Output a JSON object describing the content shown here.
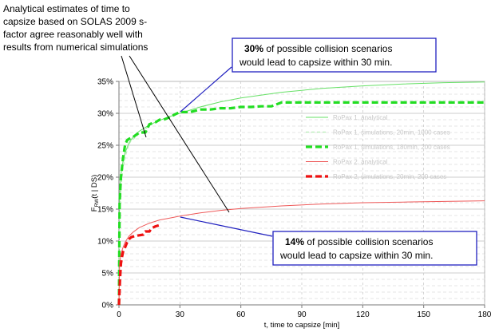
{
  "chart_data": {
    "type": "line",
    "title": "",
    "xlabel": "t, time to capsize [min]",
    "ylabel_main": "F",
    "ylabel_sub": "RW",
    "ylabel_rest": "(t | DS)",
    "xlim": [
      0,
      180
    ],
    "ylim": [
      0,
      35
    ],
    "x_ticks": [
      0,
      30,
      60,
      90,
      120,
      150,
      180
    ],
    "x_tick_labels": [
      "0",
      "30",
      "60",
      "90",
      "120",
      "150",
      "180"
    ],
    "y_ticks": [
      0,
      5,
      10,
      15,
      20,
      25,
      30,
      35
    ],
    "y_tick_labels": [
      "0%",
      "5%",
      "10%",
      "15%",
      "20%",
      "25%",
      "30%",
      "35%"
    ],
    "grid": true,
    "legend_position": "right",
    "series": [
      {
        "name": "RoPax 1, analytical",
        "color": "#66e066",
        "style": "solid",
        "x": [
          0,
          0.3,
          1,
          2,
          3,
          5,
          7,
          10,
          15,
          20,
          25,
          30,
          40,
          50,
          60,
          80,
          100,
          120,
          140,
          160,
          180
        ],
        "y": [
          0,
          17,
          20.5,
          22.5,
          23.8,
          25.4,
          26.3,
          27.2,
          28.2,
          28.9,
          29.5,
          30.0,
          31.0,
          31.8,
          32.4,
          33.3,
          33.9,
          34.3,
          34.6,
          34.8,
          34.9
        ]
      },
      {
        "name": "RoPax 1, simulations, 20min, 1000 cases",
        "color": "#b4ecb4",
        "style": "dashed-thin",
        "x": [
          0,
          0.3,
          1,
          1.5,
          2,
          3,
          4,
          5,
          6,
          8,
          10,
          12,
          14,
          16,
          18,
          20
        ],
        "y": [
          0,
          13,
          18,
          20,
          21.5,
          23,
          24.3,
          25.2,
          25.7,
          26.2,
          26.8,
          27.3,
          27.8,
          28.3,
          28.6,
          28.9
        ]
      },
      {
        "name": "RoPax 1, simulations, 180min, 200 cases",
        "color": "#22dd22",
        "style": "dashed-thick",
        "x": [
          0,
          0.3,
          1,
          2,
          3,
          4,
          5,
          7,
          10,
          13,
          15,
          18,
          20,
          22,
          25,
          28,
          30,
          35,
          40,
          45,
          50,
          55,
          60,
          65,
          70,
          75,
          80,
          90,
          100,
          120,
          140,
          160,
          180
        ],
        "y": [
          0,
          16,
          20,
          23,
          25,
          25.8,
          26,
          26.3,
          27,
          27,
          28.3,
          28.6,
          29,
          29,
          29.4,
          29.9,
          30.2,
          30.2,
          30.6,
          30.6,
          30.8,
          30.8,
          31.0,
          31.0,
          31.1,
          31.1,
          31.7,
          31.7,
          31.7,
          31.7,
          31.7,
          31.7,
          31.7
        ]
      },
      {
        "name": "RoPax 2, analytical",
        "color": "#ee5a5a",
        "style": "solid",
        "x": [
          0,
          0.3,
          1,
          2,
          3,
          5,
          7,
          10,
          15,
          20,
          25,
          30,
          40,
          50,
          60,
          80,
          100,
          120,
          140,
          160,
          180
        ],
        "y": [
          0,
          6.5,
          8.0,
          9.0,
          9.8,
          10.8,
          11.4,
          12.1,
          12.8,
          13.3,
          13.6,
          13.9,
          14.4,
          14.8,
          15.1,
          15.5,
          15.8,
          16.0,
          16.1,
          16.2,
          16.3
        ]
      },
      {
        "name": "RoPax 2, simulations, 20min, 200 cases",
        "color": "#ee1111",
        "style": "dashed-thick",
        "x": [
          0,
          0.5,
          1,
          1.5,
          2,
          3,
          4,
          5,
          6,
          8,
          10,
          12,
          13,
          15,
          16,
          18,
          20
        ],
        "y": [
          0,
          4,
          6.5,
          7.5,
          8.3,
          9.0,
          9.8,
          10.3,
          10.6,
          10.8,
          10.9,
          11.0,
          11.5,
          11.5,
          12.0,
          12.3,
          12.5
        ]
      }
    ],
    "annotations": {
      "top_left_lines": [
        "Analytical estimates of time to",
        "capsize based on SOLAS 2009 s-",
        "factor agree reasonably well with",
        "results from numerical simulations"
      ],
      "callout_top": {
        "bold": "30%",
        "line1_rest": " of possible collision scenarios",
        "line2": "would lead to capsize within 30 min."
      },
      "callout_bottom": {
        "bold": "14%",
        "line1_rest": " of possible collision scenarios",
        "line2": "would lead to capsize within 30 min."
      }
    }
  }
}
